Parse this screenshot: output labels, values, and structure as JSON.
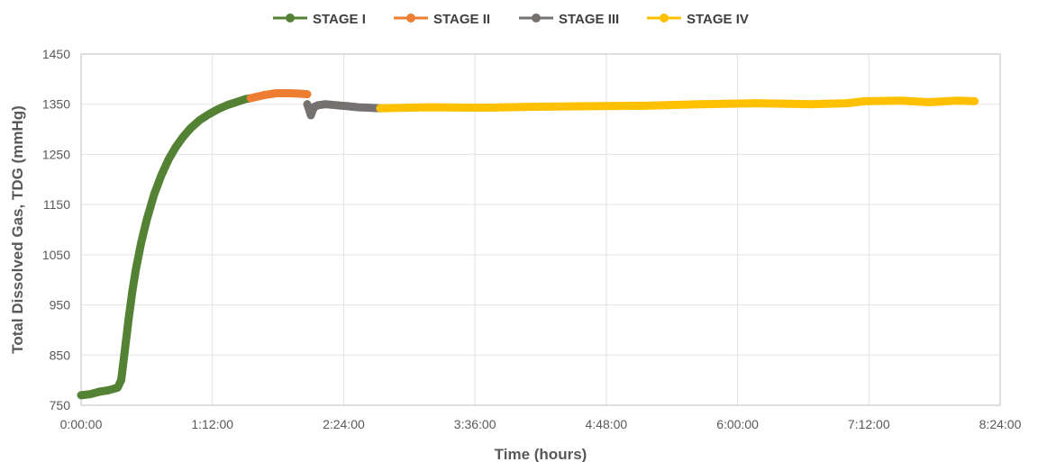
{
  "chart_data": {
    "type": "line",
    "title": "",
    "xlabel": "Time (hours)",
    "ylabel": "Total Dissolved Gas, TDG (mmHg)",
    "xlim": [
      "0:00:00",
      "8:24:00"
    ],
    "ylim": [
      750,
      1450
    ],
    "x_ticks": [
      "0:00:00",
      "1:12:00",
      "2:24:00",
      "3:36:00",
      "4:48:00",
      "6:00:00",
      "7:12:00",
      "8:24:00"
    ],
    "y_ticks": [
      "750",
      "850",
      "950",
      "1050",
      "1150",
      "1250",
      "1350",
      "1450"
    ],
    "grid": true,
    "legend_position": "top",
    "series": [
      {
        "name": "STAGE I",
        "color": "#548235",
        "x": [
          "0:00:00",
          "0:05:00",
          "0:10:00",
          "0:15:00",
          "0:20:00",
          "0:22:00",
          "0:24:00",
          "0:26:00",
          "0:28:00",
          "0:30:00",
          "0:33:00",
          "0:36:00",
          "0:40:00",
          "0:44:00",
          "0:48:00",
          "0:52:00",
          "0:56:00",
          "1:00:00",
          "1:05:00",
          "1:10:00",
          "1:15:00",
          "1:20:00",
          "1:25:00",
          "1:30:00",
          "1:33:00"
        ],
        "y": [
          770,
          772,
          777,
          780,
          785,
          800,
          860,
          920,
          975,
          1020,
          1075,
          1120,
          1170,
          1208,
          1240,
          1265,
          1285,
          1302,
          1318,
          1330,
          1340,
          1348,
          1354,
          1360,
          1362
        ]
      },
      {
        "name": "STAGE II",
        "color": "#ED7D31",
        "x": [
          "1:33:00",
          "1:40:00",
          "1:47:00",
          "1:54:00",
          "2:00:00",
          "2:04:00"
        ],
        "y": [
          1362,
          1368,
          1372,
          1372,
          1371,
          1370
        ]
      },
      {
        "name": "STAGE III",
        "color": "#767171",
        "x": [
          "2:04:00",
          "2:05:00",
          "2:06:00",
          "2:07:00",
          "2:08:00",
          "2:10:00",
          "2:14:00",
          "2:20:00",
          "2:26:00",
          "2:32:00",
          "2:38:00",
          "2:44:00"
        ],
        "y": [
          1350,
          1340,
          1328,
          1338,
          1345,
          1348,
          1350,
          1348,
          1346,
          1344,
          1343,
          1342
        ]
      },
      {
        "name": "STAGE IV",
        "color": "#FFC000",
        "x": [
          "2:44:00",
          "3:10:00",
          "3:40:00",
          "4:10:00",
          "4:40:00",
          "5:10:00",
          "5:40:00",
          "6:10:00",
          "6:40:00",
          "7:00:00",
          "7:10:00",
          "7:30:00",
          "7:45:00",
          "8:00:00",
          "8:10:00"
        ],
        "y": [
          1342,
          1344,
          1343,
          1345,
          1346,
          1347,
          1350,
          1352,
          1350,
          1352,
          1356,
          1357,
          1354,
          1357,
          1356
        ]
      }
    ]
  }
}
